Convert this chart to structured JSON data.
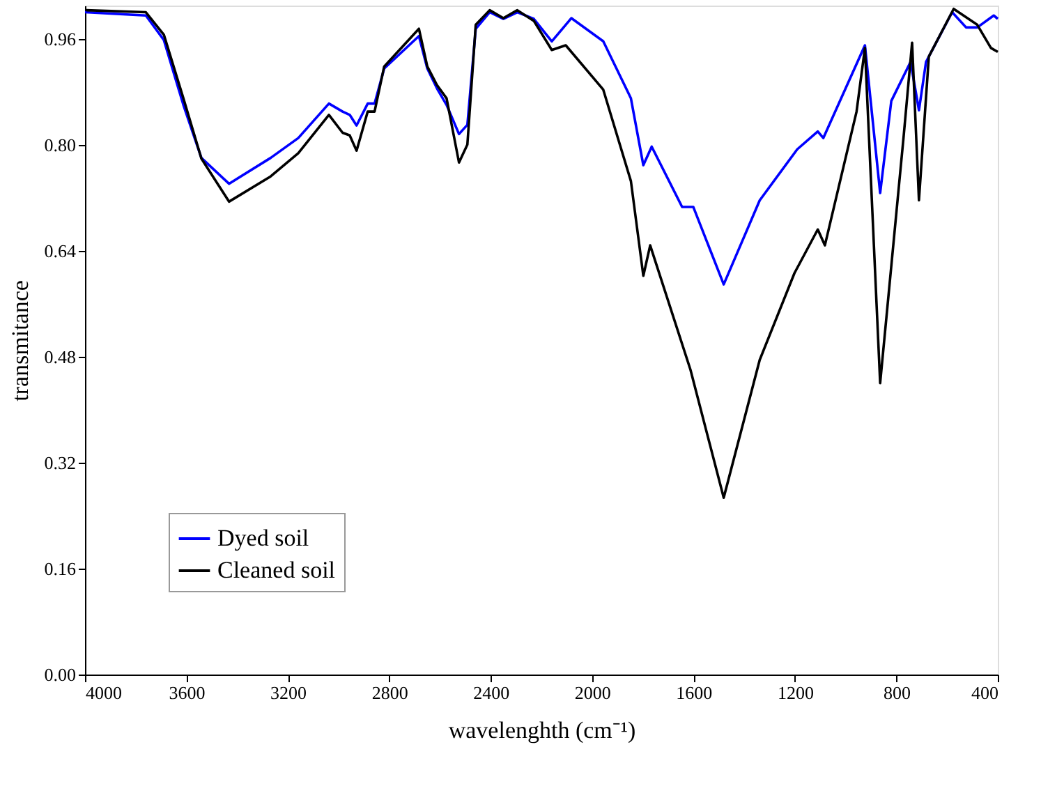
{
  "chart_data": {
    "type": "line",
    "xlabel": "wavelenghth (cm⁻¹)",
    "ylabel": "transmitance",
    "xlim": [
      4000,
      400
    ],
    "xticks": [
      4000,
      3600,
      3200,
      2800,
      2400,
      2000,
      1600,
      1200,
      800,
      400
    ],
    "ylim": [
      0,
      1.01
    ],
    "yticks": [
      {
        "value": 0,
        "label": "0.00"
      },
      {
        "value": 0.16,
        "label": "0.16"
      },
      {
        "value": 0.32,
        "label": "0.32"
      },
      {
        "value": 0.48,
        "label": "0.48"
      },
      {
        "value": 0.64,
        "label": "0.64"
      },
      {
        "value": 0.8,
        "label": "0.80"
      },
      {
        "value": 0.96,
        "label": "0.96"
      }
    ],
    "grid": false,
    "legend": "bottom left",
    "marker": "none",
    "line_style": "solid",
    "series": [
      {
        "name": "Dyed soil",
        "color": "#0000ff",
        "x": [
          4000,
          3760,
          3689,
          3612,
          3541,
          3432,
          3268,
          3159,
          3038,
          2984,
          2956,
          2929,
          2885,
          2858,
          2820,
          2683,
          2650,
          2612,
          2574,
          2525,
          2492,
          2459,
          2404,
          2350,
          2295,
          2230,
          2159,
          2082,
          1956,
          1847,
          1798,
          1765,
          1645,
          1601,
          1481,
          1339,
          1191,
          1110,
          1088,
          924,
          864,
          820,
          744,
          711,
          683,
          580,
          525,
          481,
          416,
          400
        ],
        "values": [
          1.0,
          0.995,
          0.958,
          0.86,
          0.78,
          0.741,
          0.78,
          0.81,
          0.862,
          0.85,
          0.845,
          0.829,
          0.862,
          0.862,
          0.915,
          0.964,
          0.915,
          0.885,
          0.86,
          0.816,
          0.83,
          0.975,
          1.0,
          0.99,
          1.0,
          0.99,
          0.956,
          0.991,
          0.956,
          0.87,
          0.769,
          0.797,
          0.706,
          0.706,
          0.589,
          0.716,
          0.793,
          0.82,
          0.81,
          0.95,
          0.727,
          0.866,
          0.925,
          0.852,
          0.925,
          1.0,
          0.977,
          0.977,
          0.995,
          0.99
        ]
      },
      {
        "name": "Cleaned soil",
        "color": "#000000",
        "x": [
          3995,
          3760,
          3689,
          3612,
          3541,
          3432,
          3268,
          3159,
          3038,
          2984,
          2956,
          2929,
          2885,
          2858,
          2820,
          2683,
          2650,
          2612,
          2574,
          2525,
          2492,
          2459,
          2404,
          2350,
          2295,
          2230,
          2159,
          2104,
          1956,
          1847,
          1798,
          1771,
          1612,
          1481,
          1339,
          1202,
          1110,
          1082,
          957,
          924,
          864,
          771,
          738,
          711,
          672,
          574,
          481,
          427,
          400
        ],
        "values": [
          1.003,
          1.0,
          0.966,
          0.87,
          0.779,
          0.714,
          0.752,
          0.787,
          0.845,
          0.818,
          0.814,
          0.791,
          0.85,
          0.85,
          0.918,
          0.975,
          0.918,
          0.89,
          0.87,
          0.773,
          0.8,
          0.981,
          1.003,
          0.991,
          1.003,
          0.987,
          0.943,
          0.95,
          0.883,
          0.745,
          0.602,
          0.648,
          0.46,
          0.267,
          0.475,
          0.606,
          0.672,
          0.648,
          0.85,
          0.946,
          0.44,
          0.814,
          0.954,
          0.716,
          0.933,
          1.005,
          0.981,
          0.946,
          0.94
        ]
      }
    ]
  }
}
